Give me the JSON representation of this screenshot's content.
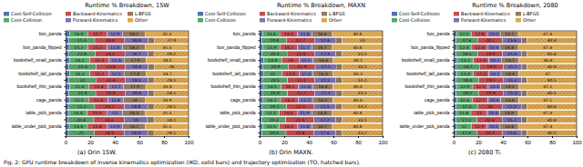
{
  "caption": "Fig. 2: GPU runtime breakdown of inverse kinematics optimization (IKO, solid bars) and trajectory optimization (TO, hatched bars).",
  "chart_data": [
    {
      "type": "bar",
      "title": "Runtime % Breakdown, 15W",
      "subtitle": "(a) Orin 15W.",
      "orientation": "horizontal",
      "stacked": true,
      "grid": false,
      "legend": "upper center",
      "data_labels": true,
      "categories": [
        "box_panda",
        null,
        "box_panda_flipped",
        null,
        "bookshelf_small_panda",
        null,
        "bookshelf_tall_panda",
        null,
        "bookshelf_thin_panda",
        null,
        "cage_panda",
        null,
        "table_pick_panda",
        null,
        "table_under_pick_panda",
        null
      ],
      "xlim": [
        0,
        100
      ],
      "xticks": [
        0,
        20,
        40,
        60,
        80,
        100
      ],
      "series": [
        {
          "name": "Cost-Self-Collision",
          "color": "#4c72b0",
          "values": [
            3.1,
            2.4,
            3.0,
            2.3,
            3.6,
            2.7,
            3.5,
            2.6,
            3.4,
            2.6,
            3.2,
            2.5,
            2.9,
            2.2,
            3.0,
            2.3
          ]
        },
        {
          "name": "Cost-Collision",
          "color": "#55a868",
          "values": [
            14.9,
            21.3,
            15.2,
            21.8,
            16.1,
            22.4,
            16.3,
            22.0,
            15.8,
            21.9,
            15.5,
            21.2,
            14.6,
            20.8,
            14.8,
            21.0
          ]
        },
        {
          "name": "Backward-Kinematics",
          "color": "#c44e52",
          "values": [
            15.7,
            24.4,
            15.5,
            24.1,
            15.3,
            23.6,
            15.2,
            23.8,
            15.4,
            23.9,
            15.6,
            24.2,
            15.9,
            24.6,
            15.8,
            24.5
          ]
        },
        {
          "name": "Forward-Kinematics",
          "color": "#8172b3",
          "values": [
            12.9,
            18.9,
            12.8,
            18.7,
            12.6,
            18.4,
            12.5,
            18.5,
            12.7,
            18.6,
            12.8,
            18.8,
            13.0,
            19.0,
            12.9,
            18.9
          ]
        },
        {
          "name": "L-BFGS",
          "color": "#937860",
          "values": [
            18.1,
            5.1,
            18.2,
            5.0,
            17.9,
            4.9,
            17.8,
            5.0,
            17.9,
            4.9,
            18.0,
            5.2,
            18.3,
            5.3,
            18.2,
            5.2
          ]
        },
        {
          "name": "Other",
          "color": "#dda852",
          "values": [
            35.3,
            27.9,
            35.3,
            28.1,
            34.5,
            28.0,
            34.7,
            28.1,
            34.8,
            28.1,
            34.9,
            28.1,
            35.3,
            28.1,
            35.3,
            28.1
          ]
        }
      ]
    },
    {
      "type": "bar",
      "title": "Runtime % Breakdown, MAXN",
      "subtitle": "(b) Orin MAXN.",
      "orientation": "horizontal",
      "stacked": true,
      "grid": false,
      "legend": "upper center",
      "data_labels": true,
      "categories": [
        "box_panda",
        null,
        "box_panda_flipped",
        null,
        "bookshelf_small_panda",
        null,
        "bookshelf_tall_panda",
        null,
        "bookshelf_thin_panda",
        null,
        "cage_panda",
        null,
        "table_pick_panda",
        null,
        "table_under_pick_panda",
        null
      ],
      "xlim": [
        0,
        100
      ],
      "xticks": [
        0,
        20,
        40,
        60,
        80,
        100
      ],
      "series": [
        {
          "name": "Cost-Self-Collision",
          "color": "#4c72b0",
          "values": [
            2.8,
            2.1,
            2.7,
            2.0,
            3.2,
            2.4,
            3.1,
            2.3,
            3.0,
            2.3,
            2.9,
            2.2,
            2.6,
            2.0,
            2.7,
            2.0
          ]
        },
        {
          "name": "Cost-Collision",
          "color": "#55a868",
          "values": [
            13.6,
            19.8,
            13.9,
            20.3,
            14.8,
            20.9,
            15.0,
            20.5,
            14.5,
            20.4,
            14.2,
            19.7,
            13.3,
            19.3,
            13.5,
            19.5
          ]
        },
        {
          "name": "Backward-Kinematics",
          "color": "#c44e52",
          "values": [
            14.4,
            22.7,
            14.2,
            22.4,
            14.0,
            21.9,
            13.9,
            22.1,
            14.1,
            22.2,
            14.3,
            22.5,
            14.6,
            22.9,
            14.5,
            22.8
          ]
        },
        {
          "name": "Forward-Kinematics",
          "color": "#8172b3",
          "values": [
            11.8,
            17.6,
            11.7,
            17.4,
            11.5,
            17.1,
            11.4,
            17.2,
            11.6,
            17.3,
            11.7,
            17.5,
            11.9,
            17.7,
            11.8,
            17.6
          ]
        },
        {
          "name": "L-BFGS",
          "color": "#937860",
          "values": [
            16.6,
            4.8,
            16.7,
            4.7,
            16.4,
            4.6,
            16.3,
            4.7,
            16.4,
            4.6,
            16.5,
            4.9,
            16.8,
            5.0,
            16.7,
            4.9
          ]
        },
        {
          "name": "Other",
          "color": "#dda852",
          "values": [
            40.8,
            33.0,
            40.8,
            33.2,
            40.1,
            33.1,
            40.3,
            33.2,
            40.4,
            33.2,
            40.4,
            33.2,
            40.8,
            33.1,
            40.8,
            33.2
          ]
        }
      ]
    },
    {
      "type": "bar",
      "title": "Runtime % Breakdown, 2080",
      "subtitle": "(c) 2080 Ti.",
      "orientation": "horizontal",
      "stacked": true,
      "grid": false,
      "legend": "upper center",
      "data_labels": true,
      "categories": [
        "box_panda",
        null,
        "box_panda_flipped",
        null,
        "bookshelf_small_panda",
        null,
        "bookshelf_tall_panda",
        null,
        "bookshelf_thin_panda",
        null,
        "cage_panda",
        null,
        "table_pick_panda",
        null,
        "table_under_pick_panda",
        null
      ],
      "xlim": [
        0,
        100
      ],
      "xticks": [
        0,
        20,
        40,
        60,
        80,
        100
      ],
      "series": [
        {
          "name": "Cost-Self-Collision",
          "color": "#4c72b0",
          "values": [
            2.5,
            1.9,
            2.4,
            1.8,
            2.9,
            2.2,
            2.8,
            2.1,
            2.7,
            2.1,
            2.6,
            2.0,
            2.3,
            1.8,
            2.4,
            1.8
          ]
        },
        {
          "name": "Cost-Collision",
          "color": "#55a868",
          "values": [
            12.1,
            17.6,
            12.4,
            18.1,
            13.2,
            18.7,
            13.4,
            18.3,
            12.9,
            18.2,
            12.6,
            17.5,
            11.8,
            17.2,
            12.0,
            17.4
          ]
        },
        {
          "name": "Backward-Kinematics",
          "color": "#c44e52",
          "values": [
            12.8,
            20.2,
            12.6,
            19.9,
            12.4,
            19.5,
            12.3,
            19.7,
            12.5,
            19.8,
            12.7,
            20.0,
            13.0,
            20.4,
            12.9,
            20.3
          ]
        },
        {
          "name": "Forward-Kinematics",
          "color": "#8172b3",
          "values": [
            10.5,
            15.6,
            10.4,
            15.4,
            10.2,
            15.1,
            10.1,
            15.2,
            10.3,
            15.3,
            10.4,
            15.5,
            10.6,
            15.7,
            10.5,
            15.6
          ]
        },
        {
          "name": "L-BFGS",
          "color": "#937860",
          "values": [
            14.7,
            4.3,
            14.8,
            4.2,
            14.5,
            4.1,
            14.4,
            4.2,
            14.5,
            4.1,
            14.6,
            4.4,
            14.9,
            4.5,
            14.8,
            4.4
          ]
        },
        {
          "name": "Other",
          "color": "#dda852",
          "values": [
            47.4,
            40.4,
            47.4,
            40.6,
            46.8,
            40.4,
            47.0,
            40.5,
            47.1,
            40.5,
            47.1,
            40.6,
            47.4,
            40.4,
            47.4,
            40.5
          ]
        }
      ]
    }
  ]
}
